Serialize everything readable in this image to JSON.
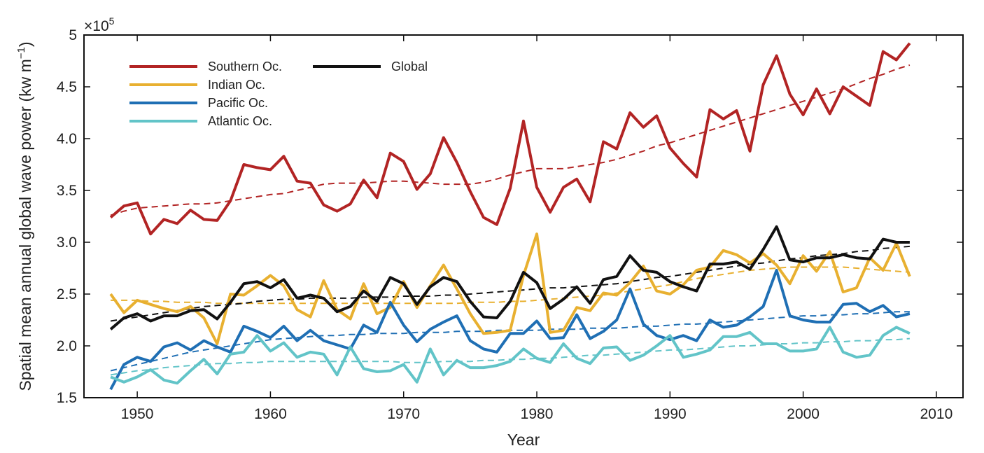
{
  "chart_data": {
    "type": "line",
    "xlabel": "Year",
    "ylabel": "Spatial mean annual global wave power (kw m",
    "ylabel_sup": "−1",
    "ylabel_close": ")",
    "y_multiplier": "×10",
    "y_multiplier_exp": "5",
    "xlim": [
      1946,
      2012
    ],
    "ylim": [
      1.5,
      5
    ],
    "x_ticks": [
      1950,
      1960,
      1970,
      1980,
      1990,
      2000,
      2010
    ],
    "x_tick_labels": [
      "1950",
      "1960",
      "1970",
      "1980",
      "1990",
      "2000",
      "2010"
    ],
    "y_ticks": [
      1.5,
      2.0,
      2.5,
      3.0,
      3.5,
      4.0,
      4.5,
      5
    ],
    "y_tick_labels": [
      "1.5",
      "2.0",
      "2.5",
      "3.0",
      "3.5",
      "4.0",
      "4.5",
      "5"
    ],
    "legend_placement": "top-left",
    "grid": false,
    "x": [
      1948,
      1949,
      1950,
      1951,
      1952,
      1953,
      1954,
      1955,
      1956,
      1957,
      1958,
      1959,
      1960,
      1961,
      1962,
      1963,
      1964,
      1965,
      1966,
      1967,
      1968,
      1969,
      1970,
      1971,
      1972,
      1973,
      1974,
      1975,
      1976,
      1977,
      1978,
      1979,
      1980,
      1981,
      1982,
      1983,
      1984,
      1985,
      1986,
      1987,
      1988,
      1989,
      1990,
      1991,
      1992,
      1993,
      1994,
      1995,
      1996,
      1997,
      1998,
      1999,
      2000,
      2001,
      2002,
      2003,
      2004,
      2005,
      2006,
      2007,
      2008
    ],
    "series": [
      {
        "name": "Southern Oc.",
        "color": "#b22424",
        "values": [
          3.24,
          3.35,
          3.38,
          3.08,
          3.22,
          3.18,
          3.31,
          3.22,
          3.21,
          3.4,
          3.75,
          3.72,
          3.7,
          3.83,
          3.59,
          3.57,
          3.36,
          3.3,
          3.37,
          3.6,
          3.43,
          3.86,
          3.78,
          3.51,
          3.66,
          4.01,
          3.77,
          3.49,
          3.24,
          3.17,
          3.52,
          4.17,
          3.53,
          3.29,
          3.53,
          3.61,
          3.39,
          3.97,
          3.9,
          4.25,
          4.11,
          4.22,
          3.91,
          3.76,
          3.63,
          4.28,
          4.19,
          4.27,
          3.88,
          4.52,
          4.8,
          4.43,
          4.23,
          4.48,
          4.24,
          4.5,
          4.41,
          4.32,
          4.84,
          4.76,
          4.92
        ],
        "trend": [
          3.26,
          3.3,
          3.33,
          3.34,
          3.35,
          3.36,
          3.37,
          3.37,
          3.38,
          3.4,
          3.42,
          3.44,
          3.46,
          3.47,
          3.5,
          3.53,
          3.56,
          3.57,
          3.57,
          3.57,
          3.58,
          3.59,
          3.59,
          3.58,
          3.57,
          3.56,
          3.56,
          3.56,
          3.58,
          3.61,
          3.65,
          3.68,
          3.71,
          3.71,
          3.71,
          3.73,
          3.75,
          3.77,
          3.8,
          3.84,
          3.88,
          3.93,
          3.96,
          4.0,
          4.04,
          4.08,
          4.12,
          4.16,
          4.2,
          4.24,
          4.28,
          4.32,
          4.36,
          4.4,
          4.44,
          4.48,
          4.53,
          4.58,
          4.62,
          4.67,
          4.71
        ]
      },
      {
        "name": "Indian Oc.",
        "color": "#e8b030",
        "values": [
          2.5,
          2.32,
          2.44,
          2.4,
          2.36,
          2.33,
          2.38,
          2.27,
          2.02,
          2.5,
          2.49,
          2.58,
          2.68,
          2.58,
          2.35,
          2.28,
          2.63,
          2.35,
          2.26,
          2.6,
          2.31,
          2.37,
          2.62,
          2.37,
          2.58,
          2.78,
          2.55,
          2.31,
          2.12,
          2.13,
          2.15,
          2.68,
          3.08,
          2.13,
          2.15,
          2.37,
          2.34,
          2.51,
          2.49,
          2.61,
          2.77,
          2.53,
          2.5,
          2.59,
          2.73,
          2.76,
          2.92,
          2.88,
          2.8,
          2.89,
          2.78,
          2.6,
          2.87,
          2.72,
          2.91,
          2.52,
          2.56,
          2.85,
          2.73,
          2.99,
          2.67
        ],
        "trend": [
          2.44,
          2.44,
          2.44,
          2.43,
          2.43,
          2.42,
          2.42,
          2.42,
          2.41,
          2.41,
          2.41,
          2.41,
          2.41,
          2.41,
          2.41,
          2.41,
          2.41,
          2.41,
          2.41,
          2.41,
          2.41,
          2.41,
          2.41,
          2.41,
          2.41,
          2.41,
          2.41,
          2.42,
          2.42,
          2.42,
          2.43,
          2.43,
          2.44,
          2.45,
          2.46,
          2.47,
          2.48,
          2.49,
          2.51,
          2.53,
          2.55,
          2.57,
          2.59,
          2.62,
          2.65,
          2.67,
          2.69,
          2.71,
          2.73,
          2.74,
          2.75,
          2.76,
          2.76,
          2.76,
          2.76,
          2.76,
          2.75,
          2.74,
          2.73,
          2.72,
          2.71
        ]
      },
      {
        "name": "Pacific Oc.",
        "color": "#1f6fb4",
        "values": [
          1.58,
          1.82,
          1.89,
          1.85,
          1.99,
          2.03,
          1.96,
          2.05,
          1.99,
          1.94,
          2.19,
          2.14,
          2.08,
          2.19,
          2.05,
          2.15,
          2.05,
          2.01,
          1.97,
          2.2,
          2.13,
          2.42,
          2.2,
          2.04,
          2.16,
          2.23,
          2.29,
          2.05,
          1.97,
          1.94,
          2.12,
          2.12,
          2.24,
          2.07,
          2.08,
          2.3,
          2.07,
          2.14,
          2.25,
          2.55,
          2.21,
          2.1,
          2.06,
          2.1,
          2.05,
          2.25,
          2.18,
          2.2,
          2.28,
          2.38,
          2.73,
          2.29,
          2.25,
          2.23,
          2.23,
          2.4,
          2.41,
          2.33,
          2.39,
          2.28,
          2.31
        ],
        "trend": [
          1.76,
          1.79,
          1.82,
          1.85,
          1.88,
          1.91,
          1.94,
          1.96,
          1.98,
          2.0,
          2.02,
          2.04,
          2.06,
          2.07,
          2.08,
          2.09,
          2.1,
          2.1,
          2.11,
          2.11,
          2.12,
          2.12,
          2.12,
          2.13,
          2.13,
          2.13,
          2.14,
          2.14,
          2.14,
          2.15,
          2.15,
          2.15,
          2.15,
          2.16,
          2.16,
          2.16,
          2.17,
          2.17,
          2.17,
          2.18,
          2.19,
          2.19,
          2.2,
          2.21,
          2.21,
          2.22,
          2.23,
          2.24,
          2.25,
          2.26,
          2.27,
          2.28,
          2.29,
          2.29,
          2.3,
          2.3,
          2.31,
          2.31,
          2.32,
          2.33,
          2.33
        ]
      },
      {
        "name": "Atlantic Oc.",
        "color": "#62c4c8",
        "values": [
          1.7,
          1.65,
          1.7,
          1.77,
          1.67,
          1.64,
          1.76,
          1.87,
          1.73,
          1.92,
          1.94,
          2.1,
          1.95,
          2.03,
          1.89,
          1.94,
          1.92,
          1.72,
          1.99,
          1.78,
          1.75,
          1.76,
          1.82,
          1.65,
          1.97,
          1.72,
          1.86,
          1.79,
          1.79,
          1.81,
          1.85,
          1.97,
          1.88,
          1.84,
          2.02,
          1.88,
          1.83,
          1.98,
          1.99,
          1.86,
          1.91,
          2.0,
          2.1,
          1.89,
          1.92,
          1.96,
          2.09,
          2.09,
          2.13,
          2.02,
          2.02,
          1.95,
          1.95,
          1.97,
          2.18,
          1.94,
          1.89,
          1.91,
          2.1,
          2.18,
          2.12
        ],
        "trend": [
          1.72,
          1.74,
          1.76,
          1.77,
          1.79,
          1.8,
          1.81,
          1.82,
          1.83,
          1.83,
          1.84,
          1.84,
          1.85,
          1.85,
          1.85,
          1.85,
          1.85,
          1.85,
          1.85,
          1.85,
          1.85,
          1.85,
          1.84,
          1.84,
          1.84,
          1.85,
          1.85,
          1.85,
          1.86,
          1.86,
          1.87,
          1.87,
          1.88,
          1.88,
          1.89,
          1.9,
          1.91,
          1.91,
          1.92,
          1.93,
          1.94,
          1.95,
          1.96,
          1.96,
          1.97,
          1.98,
          1.99,
          2.0,
          2.0,
          2.01,
          2.02,
          2.02,
          2.03,
          2.03,
          2.04,
          2.04,
          2.05,
          2.05,
          2.06,
          2.06,
          2.07
        ]
      },
      {
        "name": "Global",
        "color": "#111111",
        "values": [
          2.16,
          2.27,
          2.31,
          2.24,
          2.29,
          2.29,
          2.34,
          2.35,
          2.26,
          2.42,
          2.6,
          2.62,
          2.56,
          2.64,
          2.46,
          2.49,
          2.46,
          2.33,
          2.38,
          2.53,
          2.43,
          2.66,
          2.6,
          2.4,
          2.57,
          2.66,
          2.62,
          2.43,
          2.28,
          2.27,
          2.43,
          2.71,
          2.61,
          2.36,
          2.45,
          2.57,
          2.41,
          2.64,
          2.67,
          2.87,
          2.73,
          2.71,
          2.62,
          2.57,
          2.53,
          2.79,
          2.79,
          2.81,
          2.74,
          2.93,
          3.15,
          2.83,
          2.81,
          2.85,
          2.85,
          2.88,
          2.85,
          2.84,
          3.03,
          3.0,
          3.0
        ],
        "trend": [
          2.24,
          2.26,
          2.28,
          2.3,
          2.32,
          2.34,
          2.36,
          2.38,
          2.39,
          2.4,
          2.41,
          2.43,
          2.44,
          2.45,
          2.45,
          2.46,
          2.46,
          2.46,
          2.46,
          2.47,
          2.47,
          2.47,
          2.48,
          2.48,
          2.48,
          2.49,
          2.49,
          2.5,
          2.51,
          2.52,
          2.53,
          2.54,
          2.55,
          2.56,
          2.56,
          2.57,
          2.58,
          2.59,
          2.6,
          2.62,
          2.64,
          2.66,
          2.67,
          2.69,
          2.71,
          2.73,
          2.75,
          2.77,
          2.79,
          2.8,
          2.82,
          2.84,
          2.85,
          2.87,
          2.88,
          2.89,
          2.91,
          2.92,
          2.94,
          2.95,
          2.96
        ]
      }
    ]
  }
}
